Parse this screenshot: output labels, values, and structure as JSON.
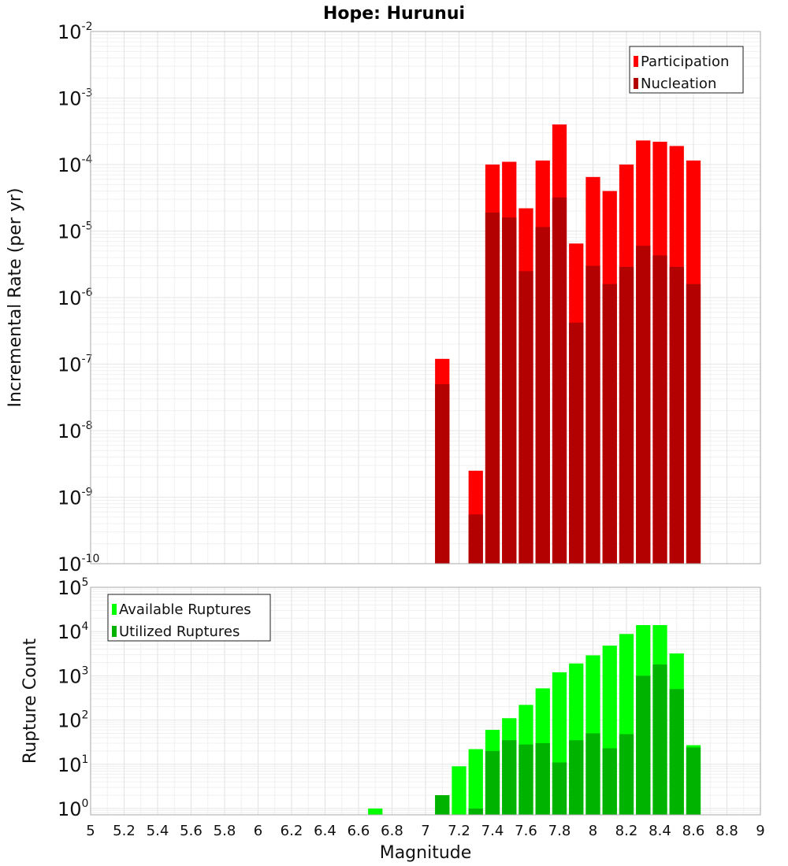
{
  "title": "Hope: Hurunui",
  "colors": {
    "participation": "#ff0000",
    "nucleation": "#b30000",
    "available": "#00ff00",
    "utilized": "#00b300",
    "grid": "#e6e6e6",
    "plot_border": "#aaaaaa"
  },
  "chart_data": [
    {
      "type": "bar",
      "panel": "top",
      "ylabel": "Incremental Rate (per yr)",
      "yscale": "log",
      "ylim": [
        1e-10,
        0.01
      ],
      "ytick_exponents": [
        -2,
        -3,
        -4,
        -5,
        -6,
        -7,
        -8,
        -9,
        -10
      ],
      "xlim": [
        5,
        9
      ],
      "bar_width": 0.1,
      "grid": true,
      "legend": {
        "position": "top-right",
        "entries": [
          "Participation",
          "Nucleation"
        ]
      },
      "series": [
        {
          "name": "Participation",
          "x": [
            7.1,
            7.3,
            7.4,
            7.5,
            7.6,
            7.7,
            7.8,
            7.9,
            8.0,
            8.1,
            8.2,
            8.3,
            8.4,
            8.5,
            8.6
          ],
          "values": [
            1.2e-07,
            2.5e-09,
            0.0001,
            0.00011,
            2.2e-05,
            0.000115,
            0.0004,
            6.5e-06,
            6.5e-05,
            4e-05,
            0.0001,
            0.00023,
            0.00022,
            0.00019,
            0.000115
          ]
        },
        {
          "name": "Nucleation",
          "x": [
            7.1,
            7.3,
            7.4,
            7.5,
            7.6,
            7.7,
            7.8,
            7.9,
            8.0,
            8.1,
            8.2,
            8.3,
            8.4,
            8.5,
            8.6
          ],
          "values": [
            5e-08,
            5.5e-10,
            1.9e-05,
            1.6e-05,
            2.5e-06,
            1.15e-05,
            3.2e-05,
            4.2e-07,
            3e-06,
            1.6e-06,
            2.9e-06,
            6e-06,
            4.3e-06,
            2.9e-06,
            1.6e-06
          ]
        }
      ]
    },
    {
      "type": "bar",
      "panel": "bottom",
      "ylabel": "Rupture Count",
      "xlabel": "Magnitude",
      "yscale": "log",
      "ylim": [
        0.72,
        100000.0
      ],
      "ytick_exponents": [
        5,
        4,
        3,
        2,
        1,
        0
      ],
      "xlim": [
        5,
        9
      ],
      "xticks": [
        "5",
        "5.2",
        "5.4",
        "5.6",
        "5.8",
        "6",
        "6.2",
        "6.4",
        "6.6",
        "6.8",
        "7",
        "7.2",
        "7.4",
        "7.6",
        "7.8",
        "8",
        "8.2",
        "8.4",
        "8.6",
        "8.8",
        "9"
      ],
      "bar_width": 0.1,
      "grid": true,
      "legend": {
        "position": "top-left",
        "entries": [
          "Available Ruptures",
          "Utilized Ruptures"
        ]
      },
      "series": [
        {
          "name": "Available Ruptures",
          "x": [
            6.7,
            7.1,
            7.2,
            7.3,
            7.4,
            7.5,
            7.6,
            7.7,
            7.8,
            7.9,
            8.0,
            8.1,
            8.2,
            8.3,
            8.4,
            8.5,
            8.6
          ],
          "values": [
            1,
            2,
            9,
            22,
            60,
            110,
            220,
            520,
            1200,
            1900,
            2900,
            4800,
            8800,
            14000,
            14000,
            3200,
            27
          ]
        },
        {
          "name": "Utilized Ruptures",
          "x": [
            7.1,
            7.3,
            7.4,
            7.5,
            7.6,
            7.7,
            7.8,
            7.9,
            8.0,
            8.1,
            8.2,
            8.3,
            8.4,
            8.5,
            8.6
          ],
          "values": [
            2,
            1,
            20,
            35,
            28,
            30,
            11,
            35,
            50,
            23,
            48,
            1000,
            1800,
            500,
            24
          ]
        }
      ]
    }
  ]
}
